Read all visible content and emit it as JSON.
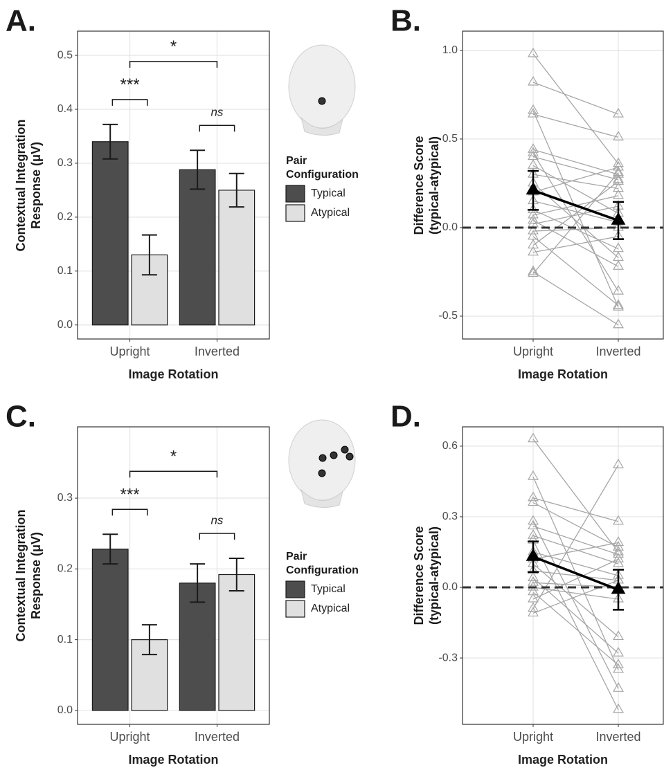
{
  "chart_data": [
    {
      "type": "bar",
      "label": "A.",
      "ylabel": "Contextual Integration Response (μV)",
      "xlabel": "Image Rotation",
      "categories": [
        "Upright",
        "Inverted"
      ],
      "series": [
        {
          "name": "Typical",
          "color": "#4d4d4d",
          "values": [
            0.34,
            0.288
          ],
          "errors": [
            0.032,
            0.036
          ]
        },
        {
          "name": "Atypical",
          "color": "#e0e0e0",
          "values": [
            0.13,
            0.25
          ],
          "errors": [
            0.037,
            0.031
          ]
        }
      ],
      "ylim": [
        -0.026,
        0.545
      ],
      "yticks": [
        {
          "value": 0,
          "label": "0.0"
        },
        0.1,
        0.2,
        0.3,
        0.4,
        0.5
      ],
      "grid": true,
      "legend_title": "Pair Configuration",
      "annotations": [
        "***",
        "ns",
        "*"
      ]
    },
    {
      "type": "line",
      "label": "B.",
      "ylabel": "Difference Score (typical-atypical)",
      "xlabel": "Image Rotation",
      "categories": [
        "Upright",
        "Inverted"
      ],
      "subjects": {
        "color": "#a6a6a6",
        "values": [
          [
            0.98,
            0.36
          ],
          [
            0.82,
            0.64
          ],
          [
            0.66,
            -0.45
          ],
          [
            0.64,
            0.51
          ],
          [
            0.44,
            0.3
          ],
          [
            0.42,
            -0.36
          ],
          [
            0.4,
            0.27
          ],
          [
            0.35,
            0.08
          ],
          [
            0.3,
            0.22
          ],
          [
            0.25,
            -0.17
          ],
          [
            0.2,
            0.34
          ],
          [
            0.15,
            0.03
          ],
          [
            0.1,
            -0.12
          ],
          [
            0.07,
            0.18
          ],
          [
            0.04,
            -0.22
          ],
          [
            0.02,
            0.12
          ],
          [
            -0.02,
            0.0
          ],
          [
            -0.05,
            -0.44
          ],
          [
            -0.1,
            0.26
          ],
          [
            -0.14,
            -0.05
          ],
          [
            -0.25,
            -0.55
          ],
          [
            -0.26,
            0.31
          ]
        ]
      },
      "mean": {
        "color": "#000000",
        "values": [
          0.21,
          0.04
        ],
        "errors": [
          0.11,
          0.105
        ]
      },
      "ylim": [
        -0.629,
        1.109
      ],
      "yticks": [
        -0.5,
        {
          "value": 0,
          "label": "0.0"
        },
        0.5,
        {
          "value": 1,
          "label": "1.0"
        }
      ],
      "grid": true,
      "hline": 0
    },
    {
      "type": "bar",
      "label": "C.",
      "ylabel": "Contextual Integration Response (μV)",
      "xlabel": "Image Rotation",
      "categories": [
        "Upright",
        "Inverted"
      ],
      "series": [
        {
          "name": "Typical",
          "color": "#4d4d4d",
          "values": [
            0.228,
            0.18
          ],
          "errors": [
            0.021,
            0.027
          ]
        },
        {
          "name": "Atypical",
          "color": "#e0e0e0",
          "values": [
            0.1,
            0.192
          ],
          "errors": [
            0.021,
            0.023
          ]
        }
      ],
      "ylim": [
        -0.0196,
        0.4007
      ],
      "yticks": [
        {
          "value": 0,
          "label": "0.0"
        },
        0.1,
        0.2,
        0.3
      ],
      "grid": true,
      "legend_title": "Pair Configuration",
      "annotations": [
        "***",
        "ns",
        "*"
      ]
    },
    {
      "type": "line",
      "label": "D.",
      "ylabel": "Difference Score (typical-atypical)",
      "xlabel": "Image Rotation",
      "categories": [
        "Upright",
        "Inverted"
      ],
      "subjects": {
        "color": "#a6a6a6",
        "values": [
          [
            0.63,
            0.15
          ],
          [
            0.47,
            -0.35
          ],
          [
            0.38,
            0.28
          ],
          [
            0.36,
            0.17
          ],
          [
            0.28,
            -0.43
          ],
          [
            0.26,
            0.14
          ],
          [
            0.22,
            0.1
          ],
          [
            0.2,
            -0.52
          ],
          [
            0.15,
            0.05
          ],
          [
            0.12,
            0.19
          ],
          [
            0.1,
            -0.21
          ],
          [
            0.07,
            0.03
          ],
          [
            0.04,
            -0.28
          ],
          [
            0.02,
            0.0
          ],
          [
            0.0,
            -0.05
          ],
          [
            -0.02,
            -0.33
          ],
          [
            -0.05,
            0.12
          ],
          [
            -0.09,
            0.52
          ],
          [
            -0.11,
            0.03
          ]
        ]
      },
      "mean": {
        "color": "#000000",
        "values": [
          0.13,
          -0.01
        ],
        "errors": [
          0.065,
          0.085
        ]
      },
      "ylim": [
        -0.582,
        0.682
      ],
      "yticks": [
        -0.3,
        {
          "value": 0,
          "label": "0.0"
        },
        0.3,
        0.6
      ],
      "grid": true,
      "hline": 0
    }
  ]
}
